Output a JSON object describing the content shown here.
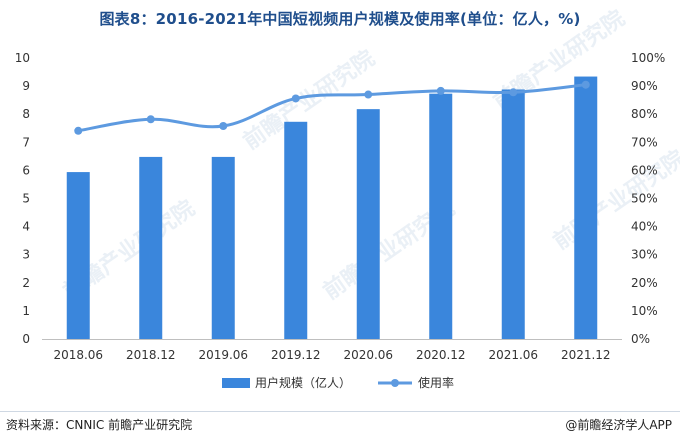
{
  "chart_data": {
    "type": "bar",
    "title": "图表8：2016-2021年中国短视频用户规模及使用率(单位：亿人，%)",
    "categories": [
      "2018.06",
      "2018.12",
      "2019.06",
      "2019.12",
      "2020.06",
      "2020.12",
      "2021.06",
      "2021.12"
    ],
    "series": [
      {
        "name": "用户规模（亿人）",
        "type": "bar",
        "axis": "left",
        "color": "#3a86dc",
        "values": [
          5.94,
          6.48,
          6.48,
          7.73,
          8.18,
          8.73,
          8.88,
          9.34
        ]
      },
      {
        "name": "使用率",
        "type": "line",
        "axis": "right",
        "color": "#5d9ae0",
        "values": [
          74.1,
          78.2,
          75.8,
          85.6,
          87.0,
          88.3,
          87.8,
          90.5
        ]
      }
    ],
    "left_axis": {
      "min": 0,
      "max": 10,
      "ticks": [
        "0",
        "1",
        "2",
        "3",
        "4",
        "5",
        "6",
        "7",
        "8",
        "9",
        "10"
      ]
    },
    "right_axis": {
      "min": 0,
      "max": 100,
      "ticks": [
        "0%",
        "10%",
        "20%",
        "30%",
        "40%",
        "50%",
        "60%",
        "70%",
        "80%",
        "90%",
        "100%"
      ]
    },
    "grid": false,
    "legend": "bottom"
  },
  "footer": {
    "source": "资料来源：CNNIC 前瞻产业研究院",
    "brand": "@前瞻经济学人APP"
  },
  "watermark": "前瞻产业研究院"
}
